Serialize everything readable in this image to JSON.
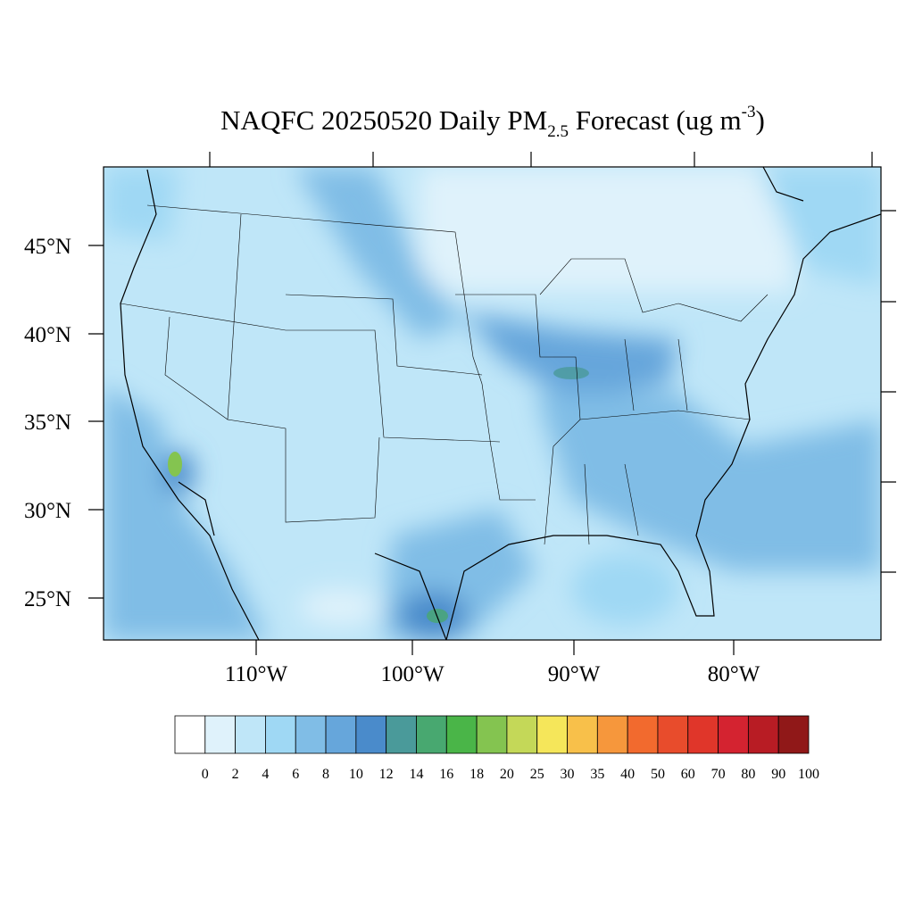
{
  "title": {
    "main": "NAQFC 20250520 Daily PM",
    "subscript": "2.5",
    "middle": " Forecast (ug m",
    "superscript": "-3",
    "end": ")"
  },
  "lat_labels": [
    "45°N",
    "40°N",
    "35°N",
    "30°N",
    "25°N"
  ],
  "lon_labels": [
    "110°W",
    "100°W",
    "90°W",
    "80°W"
  ],
  "colorbar": {
    "levels": [
      0,
      2,
      4,
      6,
      8,
      10,
      12,
      14,
      16,
      18,
      20,
      25,
      30,
      35,
      40,
      50,
      60,
      70,
      80,
      90,
      100
    ],
    "colors": [
      "#ffffff",
      "#dff2fb",
      "#bfe6f8",
      "#9fd8f4",
      "#80bde6",
      "#66a6db",
      "#4a8bcb",
      "#4a9a9a",
      "#48a870",
      "#4ab548",
      "#84c450",
      "#c4d858",
      "#f5e65a",
      "#f8c04a",
      "#f6973c",
      "#f26a2e",
      "#e84c2c",
      "#e0362a",
      "#d42330",
      "#b81c24",
      "#901818"
    ]
  }
}
